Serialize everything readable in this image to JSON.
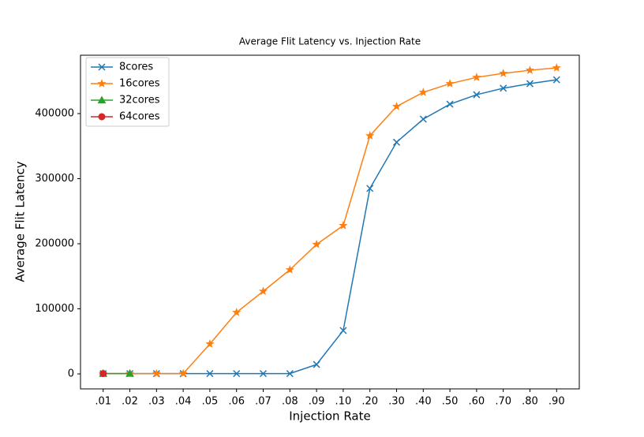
{
  "chart_data": {
    "type": "line",
    "title": "Average Flit Latency vs. Injection Rate",
    "xlabel": "Injection Rate",
    "ylabel": "Average Flit Latency",
    "categories": [
      ".01",
      ".02",
      ".03",
      ".04",
      ".05",
      ".06",
      ".07",
      ".08",
      ".09",
      ".10",
      ".20",
      ".30",
      ".40",
      ".50",
      ".60",
      ".70",
      ".80",
      ".90"
    ],
    "series": [
      {
        "name": "8cores",
        "color": "#1f77b4",
        "marker": "x",
        "values": [
          500,
          500,
          500,
          500,
          500,
          500,
          500,
          500,
          14500,
          66700,
          285000,
          356000,
          391500,
          414500,
          429000,
          439000,
          446000,
          452000
        ]
      },
      {
        "name": "16cores",
        "color": "#ff7f0e",
        "marker": "star",
        "values": [
          500,
          500,
          500,
          500,
          46000,
          94500,
          127000,
          160000,
          199000,
          228000,
          366000,
          411000,
          432700,
          446000,
          455700,
          461800,
          466600,
          470300
        ]
      },
      {
        "name": "32cores",
        "color": "#2ca02c",
        "marker": "triangle",
        "values": [
          500,
          500,
          null,
          null,
          null,
          null,
          null,
          null,
          null,
          null,
          null,
          null,
          null,
          null,
          null,
          null,
          null,
          null
        ]
      },
      {
        "name": "64cores",
        "color": "#d62728",
        "marker": "circle",
        "values": [
          500,
          null,
          null,
          null,
          null,
          null,
          null,
          null,
          null,
          null,
          null,
          null,
          null,
          null,
          null,
          null,
          null,
          null
        ]
      }
    ],
    "ylim": [
      -23000,
      489700
    ],
    "yticks": [
      0,
      100000,
      200000,
      300000,
      400000
    ],
    "legend": "upper left",
    "grid": false
  }
}
